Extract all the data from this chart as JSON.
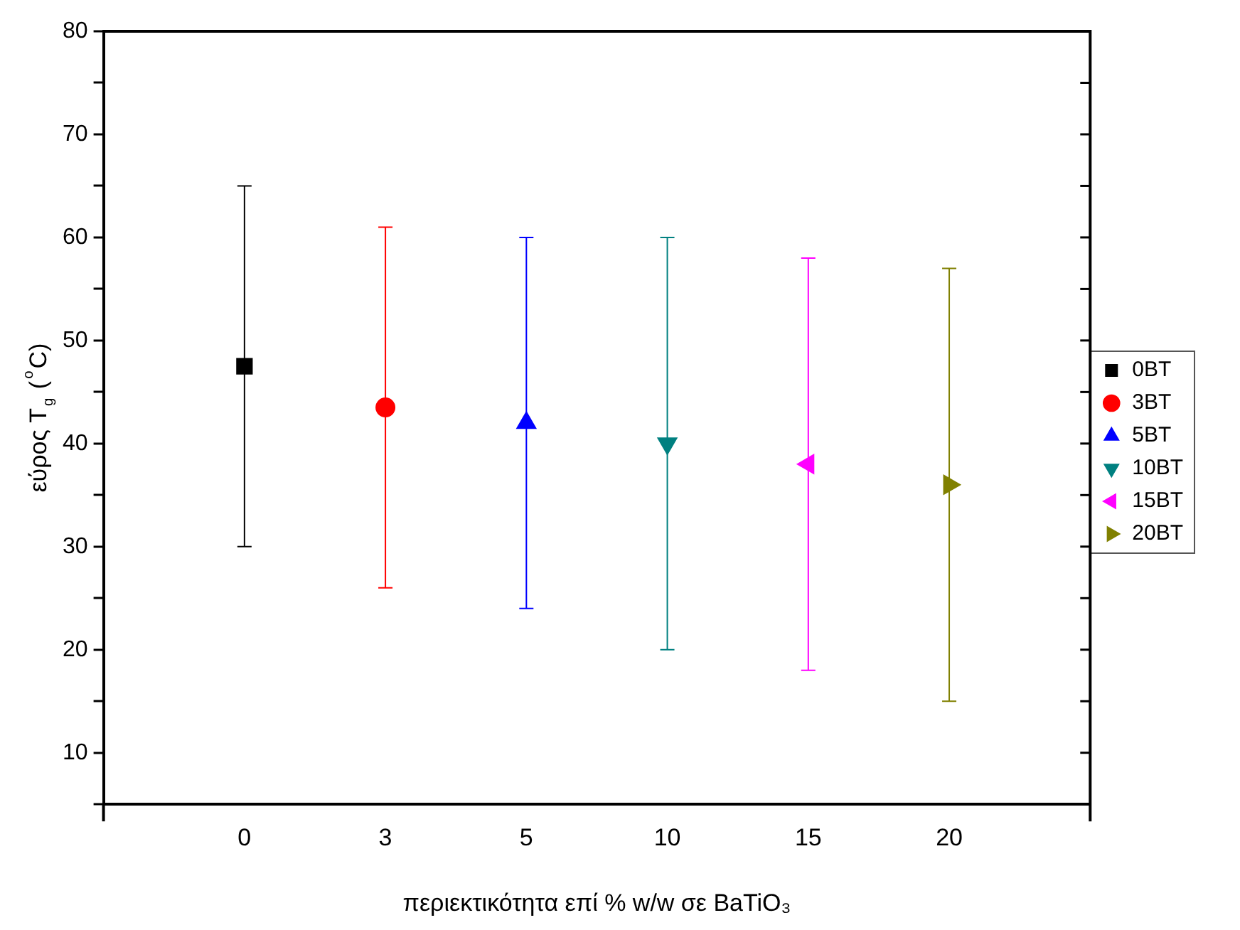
{
  "chart_data": {
    "type": "scatter",
    "xlabel": "περιεκτικότητα επί % w/w σε BaTiO₃",
    "ylabel": "εύρος T$_{g}$ ($^{o}$C)",
    "categories": [
      "0",
      "3",
      "5",
      "10",
      "15",
      "20"
    ],
    "ylim": [
      5,
      80
    ],
    "yticks": [
      {
        "value": 5,
        "label": null
      },
      10,
      {
        "value": 15,
        "label": null
      },
      20,
      {
        "value": 25,
        "label": null
      },
      30,
      {
        "value": 35,
        "label": null
      },
      40,
      {
        "value": 45,
        "label": null
      },
      50,
      {
        "value": 55,
        "label": null
      },
      60,
      {
        "value": 65,
        "label": null
      },
      70,
      {
        "value": 75,
        "label": null
      },
      80
    ],
    "grid": false,
    "legend": "right",
    "series": [
      {
        "name": "0BT",
        "color": "#000000",
        "marker": "square",
        "values": [
          47.5,
          null,
          null,
          null,
          null,
          null
        ],
        "errors": [
          [
            30,
            65
          ],
          null,
          null,
          null,
          null,
          null
        ]
      },
      {
        "name": "3BT",
        "color": "#ff0000",
        "marker": "circle",
        "values": [
          null,
          43.5,
          null,
          null,
          null,
          null
        ],
        "errors": [
          null,
          [
            26,
            61
          ],
          null,
          null,
          null,
          null
        ]
      },
      {
        "name": "5BT",
        "color": "#0000ff",
        "marker": "triangle",
        "values": [
          null,
          null,
          42,
          null,
          null,
          null
        ],
        "errors": [
          null,
          null,
          [
            24,
            60
          ],
          null,
          null,
          null
        ]
      },
      {
        "name": "10BT",
        "color": "#008080",
        "marker": "triangle-down",
        "values": [
          null,
          null,
          null,
          40,
          null,
          null
        ],
        "errors": [
          null,
          null,
          null,
          [
            20,
            60
          ],
          null,
          null
        ]
      },
      {
        "name": "15BT",
        "color": "#ff00ff",
        "marker": "triangle-left",
        "values": [
          null,
          null,
          null,
          null,
          38,
          null
        ],
        "errors": [
          null,
          null,
          null,
          null,
          [
            18,
            58
          ],
          null
        ]
      },
      {
        "name": "20BT",
        "color": "#808000",
        "marker": "triangle-right",
        "values": [
          null,
          null,
          null,
          null,
          null,
          36
        ],
        "errors": [
          null,
          null,
          null,
          null,
          null,
          [
            15,
            57
          ]
        ]
      }
    ]
  }
}
